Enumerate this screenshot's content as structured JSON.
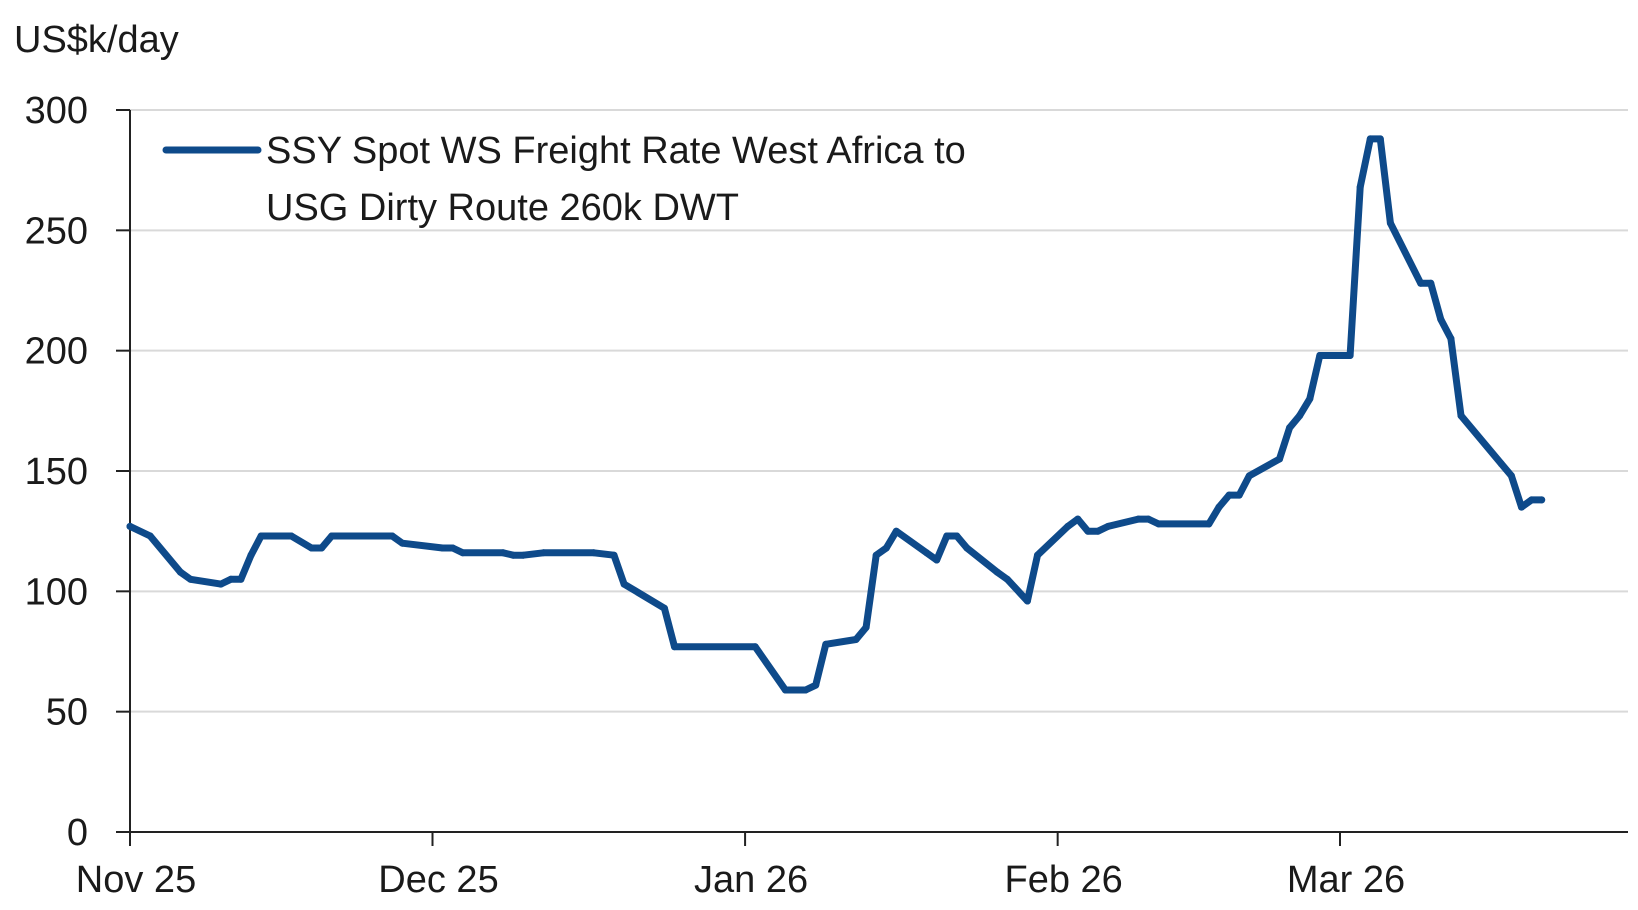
{
  "chart_data": {
    "type": "line",
    "ylabel": "US$k/day",
    "ylim": [
      0,
      300
    ],
    "yticks": [
      0,
      50,
      100,
      150,
      200,
      250,
      300
    ],
    "xlim": [
      "2025-11-01",
      "2026-03-25"
    ],
    "xticks": [
      {
        "label": "Nov 25",
        "date": "2025-11-01"
      },
      {
        "label": "Dec 25",
        "date": "2025-12-01"
      },
      {
        "label": "Jan 26",
        "date": "2026-01-01"
      },
      {
        "label": "Feb 26",
        "date": "2026-02-01"
      },
      {
        "label": "Mar 26",
        "date": "2026-03-01"
      }
    ],
    "grid": true,
    "legend_position": "top-left",
    "line_color": "#0e4a8a",
    "series": [
      {
        "name": "SSY Spot WS Freight Rate West Africa to USG Dirty Route 260k DWT",
        "legend_lines": [
          "SSY Spot WS Freight Rate West Africa to",
          "USG Dirty Route 260k DWT"
        ],
        "points": [
          [
            "2025-11-01",
            127
          ],
          [
            "2025-11-03",
            123
          ],
          [
            "2025-11-06",
            108
          ],
          [
            "2025-11-07",
            105
          ],
          [
            "2025-11-10",
            103
          ],
          [
            "2025-11-11",
            105
          ],
          [
            "2025-11-12",
            105
          ],
          [
            "2025-11-13",
            115
          ],
          [
            "2025-11-14",
            123
          ],
          [
            "2025-11-17",
            123
          ],
          [
            "2025-11-19",
            118
          ],
          [
            "2025-11-20",
            118
          ],
          [
            "2025-11-21",
            123
          ],
          [
            "2025-11-27",
            123
          ],
          [
            "2025-11-28",
            120
          ],
          [
            "2025-12-02",
            118
          ],
          [
            "2025-12-03",
            118
          ],
          [
            "2025-12-04",
            116
          ],
          [
            "2025-12-08",
            116
          ],
          [
            "2025-12-09",
            115
          ],
          [
            "2025-12-10",
            115
          ],
          [
            "2025-12-12",
            116
          ],
          [
            "2025-12-17",
            116
          ],
          [
            "2025-12-19",
            115
          ],
          [
            "2025-12-20",
            103
          ],
          [
            "2025-12-24",
            93
          ],
          [
            "2025-12-25",
            77
          ],
          [
            "2026-01-02",
            77
          ],
          [
            "2026-01-05",
            59
          ],
          [
            "2026-01-07",
            59
          ],
          [
            "2026-01-08",
            61
          ],
          [
            "2026-01-09",
            78
          ],
          [
            "2026-01-12",
            80
          ],
          [
            "2026-01-13",
            85
          ],
          [
            "2026-01-14",
            115
          ],
          [
            "2026-01-15",
            118
          ],
          [
            "2026-01-16",
            125
          ],
          [
            "2026-01-19",
            116
          ],
          [
            "2026-01-20",
            113
          ],
          [
            "2026-01-21",
            123
          ],
          [
            "2026-01-22",
            123
          ],
          [
            "2026-01-23",
            118
          ],
          [
            "2026-01-26",
            108
          ],
          [
            "2026-01-27",
            105
          ],
          [
            "2026-01-29",
            96
          ],
          [
            "2026-01-30",
            115
          ],
          [
            "2026-02-02",
            127
          ],
          [
            "2026-02-03",
            130
          ],
          [
            "2026-02-04",
            125
          ],
          [
            "2026-02-05",
            125
          ],
          [
            "2026-02-06",
            127
          ],
          [
            "2026-02-09",
            130
          ],
          [
            "2026-02-10",
            130
          ],
          [
            "2026-02-11",
            128
          ],
          [
            "2026-02-16",
            128
          ],
          [
            "2026-02-17",
            135
          ],
          [
            "2026-02-18",
            140
          ],
          [
            "2026-02-19",
            140
          ],
          [
            "2026-02-20",
            148
          ],
          [
            "2026-02-23",
            155
          ],
          [
            "2026-02-24",
            168
          ],
          [
            "2026-02-25",
            173
          ],
          [
            "2026-02-26",
            180
          ],
          [
            "2026-02-27",
            198
          ],
          [
            "2026-03-02",
            198
          ],
          [
            "2026-03-03",
            268
          ],
          [
            "2026-03-04",
            288
          ],
          [
            "2026-03-05",
            288
          ],
          [
            "2026-03-06",
            253
          ],
          [
            "2026-03-09",
            228
          ],
          [
            "2026-03-10",
            228
          ],
          [
            "2026-03-11",
            213
          ],
          [
            "2026-03-12",
            205
          ],
          [
            "2026-03-13",
            173
          ],
          [
            "2026-03-17",
            153
          ],
          [
            "2026-03-18",
            148
          ],
          [
            "2026-03-19",
            135
          ],
          [
            "2026-03-20",
            138
          ],
          [
            "2026-03-21",
            138
          ]
        ]
      }
    ]
  }
}
